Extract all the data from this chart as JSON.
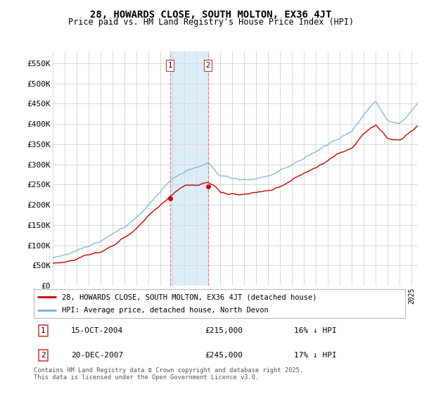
{
  "title": "28, HOWARDS CLOSE, SOUTH MOLTON, EX36 4JT",
  "subtitle": "Price paid vs. HM Land Registry's House Price Index (HPI)",
  "ylabel_ticks": [
    "£0",
    "£50K",
    "£100K",
    "£150K",
    "£200K",
    "£250K",
    "£300K",
    "£350K",
    "£400K",
    "£450K",
    "£500K",
    "£550K"
  ],
  "ytick_values": [
    0,
    50000,
    100000,
    150000,
    200000,
    250000,
    300000,
    350000,
    400000,
    450000,
    500000,
    550000
  ],
  "ylim": [
    0,
    580000
  ],
  "xlim_start": 1995.0,
  "xlim_end": 2025.5,
  "hpi_color": "#74b0d4",
  "price_color": "#cc0000",
  "sale1_date": 2004.79,
  "sale1_price": 215000,
  "sale2_date": 2007.97,
  "sale2_price": 245000,
  "shade_color": "#d8eaf7",
  "shade_alpha": 0.85,
  "shade_start": 2004.79,
  "shade_end": 2007.97,
  "vline_color": "#e88080",
  "legend_label_price": "28, HOWARDS CLOSE, SOUTH MOLTON, EX36 4JT (detached house)",
  "legend_label_hpi": "HPI: Average price, detached house, North Devon",
  "annotation1_label": "1",
  "annotation1_date": "15-OCT-2004",
  "annotation1_price": "£215,000",
  "annotation1_hpi": "16% ↓ HPI",
  "annotation2_label": "2",
  "annotation2_date": "20-DEC-2007",
  "annotation2_price": "£245,000",
  "annotation2_hpi": "17% ↓ HPI",
  "footer": "Contains HM Land Registry data © Crown copyright and database right 2025.\nThis data is licensed under the Open Government Licence v3.0.",
  "background_color": "#ffffff",
  "grid_color": "#d8d8d8",
  "hpi_nodes_t": [
    1995,
    1996,
    1997,
    1998,
    1999,
    2000,
    2001,
    2002,
    2003,
    2004.79,
    2005.5,
    2006.5,
    2007.5,
    2007.97,
    2008.5,
    2009,
    2010,
    2011,
    2012,
    2013,
    2014,
    2015,
    2016,
    2017,
    2018,
    2019,
    2020,
    2021,
    2022,
    2023,
    2024,
    2025.5
  ],
  "hpi_nodes_v": [
    68000,
    75000,
    83000,
    93000,
    105000,
    122000,
    143000,
    168000,
    200000,
    256000,
    270000,
    282000,
    290000,
    295000,
    278000,
    262000,
    258000,
    255000,
    258000,
    265000,
    278000,
    292000,
    308000,
    325000,
    342000,
    360000,
    375000,
    415000,
    445000,
    395000,
    390000,
    435000
  ],
  "price_nodes_t": [
    1995,
    1996,
    1997,
    1998,
    1999,
    2000,
    2001,
    2002,
    2003,
    2004.79,
    2005.5,
    2006,
    2007,
    2007.97,
    2008.5,
    2009,
    2010,
    2011,
    2012,
    2013,
    2014,
    2015,
    2016,
    2017,
    2018,
    2019,
    2020,
    2021,
    2022,
    2023,
    2024,
    2025.5
  ],
  "price_nodes_v": [
    55000,
    58000,
    64000,
    72000,
    82000,
    97000,
    115000,
    137000,
    168000,
    215000,
    230000,
    240000,
    242000,
    245000,
    235000,
    220000,
    215000,
    210000,
    215000,
    220000,
    232000,
    245000,
    260000,
    275000,
    292000,
    308000,
    320000,
    355000,
    375000,
    340000,
    335000,
    370000
  ],
  "noise_scale_hpi": 3500,
  "noise_scale_price": 3000,
  "n_points": 1500
}
